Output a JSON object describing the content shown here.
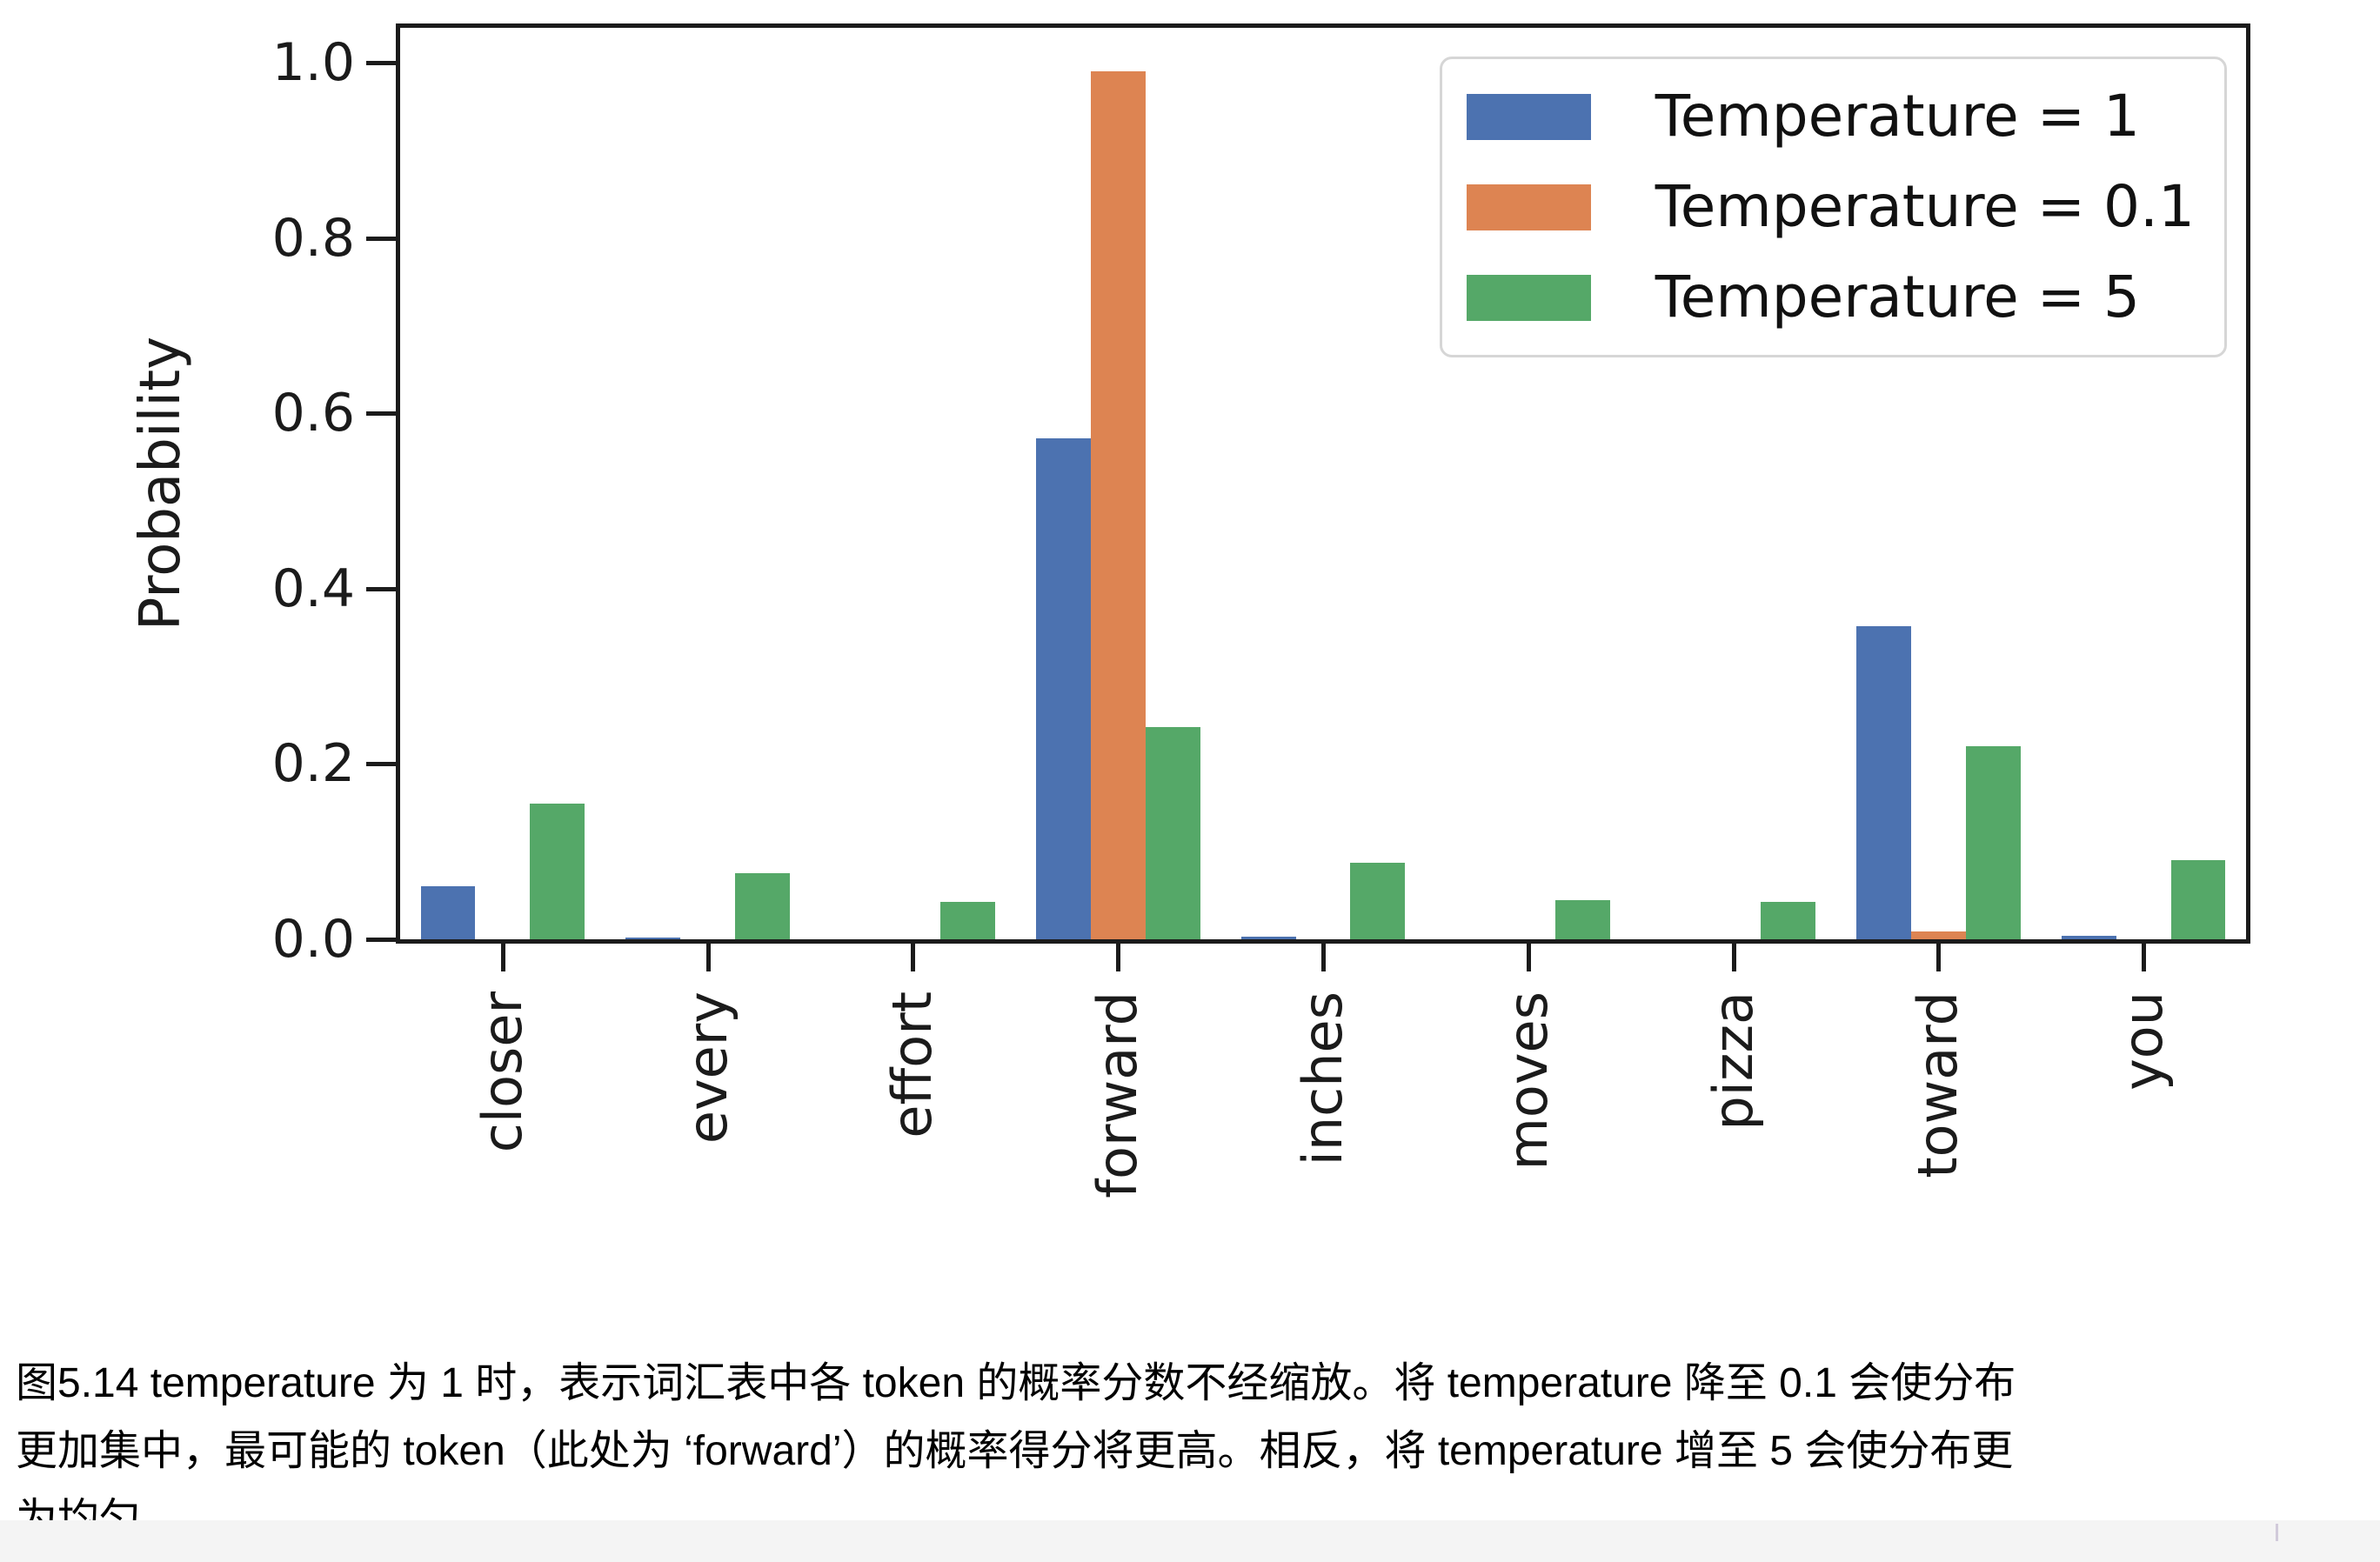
{
  "chart_data": {
    "type": "bar",
    "title": "",
    "xlabel": "",
    "ylabel": "Probability",
    "categories": [
      "closer",
      "every",
      "effort",
      "forward",
      "inches",
      "moves",
      "pizza",
      "toward",
      "you"
    ],
    "series": [
      {
        "name": "Temperature = 1",
        "color": "#4c72b0",
        "values": [
          0.061,
          0.002,
          0.0,
          0.572,
          0.003,
          0.0,
          0.0,
          0.357,
          0.004
        ]
      },
      {
        "name": "Temperature = 0.1",
        "color": "#dd8452",
        "values": [
          0.0,
          0.0,
          0.0,
          0.99,
          0.0,
          0.0,
          0.0,
          0.009,
          0.0
        ]
      },
      {
        "name": "Temperature = 5",
        "color": "#55a868",
        "values": [
          0.155,
          0.075,
          0.043,
          0.242,
          0.087,
          0.045,
          0.043,
          0.22,
          0.09
        ]
      }
    ],
    "yticks": [
      0.0,
      0.2,
      0.4,
      0.6,
      0.8,
      1.0
    ],
    "ytick_labels": [
      "0.0",
      "0.2",
      "0.4",
      "0.6",
      "0.8",
      "1.0"
    ],
    "ylim": [
      0,
      1.04
    ],
    "grid": false,
    "legend_position": "upper right",
    "bar_group_width": 0.8
  },
  "caption": {
    "lines": [
      "图5.14 temperature 为 1 时，表示词汇表中各 token 的概率分数不经缩放。将 temperature 降至 0.1 会使分布",
      "更加集中，最可能的 token（此处为 ‘forward’）的概率得分将更高。相反，将 temperature 增至 5 会使分布更",
      "为均匀。"
    ]
  }
}
